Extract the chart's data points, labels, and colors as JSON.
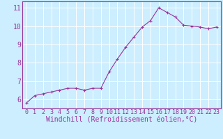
{
  "x": [
    0,
    1,
    2,
    3,
    4,
    5,
    6,
    7,
    8,
    9,
    10,
    11,
    12,
    13,
    14,
    15,
    16,
    17,
    18,
    19,
    20,
    21,
    22,
    23
  ],
  "y": [
    5.8,
    6.2,
    6.3,
    6.4,
    6.5,
    6.6,
    6.6,
    6.5,
    6.6,
    6.6,
    7.5,
    8.2,
    8.85,
    9.4,
    9.95,
    10.3,
    11.0,
    10.75,
    10.5,
    10.05,
    10.0,
    9.95,
    9.85,
    9.95
  ],
  "line_color": "#993399",
  "marker": "+",
  "marker_size": 3,
  "xlabel": "Windchill (Refroidissement éolien,°C)",
  "xlim_min": -0.5,
  "xlim_max": 23.5,
  "ylim_min": 5.5,
  "ylim_max": 11.35,
  "yticks": [
    6,
    7,
    8,
    9,
    10,
    11
  ],
  "xticks": [
    0,
    1,
    2,
    3,
    4,
    5,
    6,
    7,
    8,
    9,
    10,
    11,
    12,
    13,
    14,
    15,
    16,
    17,
    18,
    19,
    20,
    21,
    22,
    23
  ],
  "background_color": "#cceeff",
  "grid_color": "#ffffff",
  "line_color_spine": "#993399",
  "line_width": 0.8,
  "font_size": 6,
  "xlabel_fontsize": 7
}
